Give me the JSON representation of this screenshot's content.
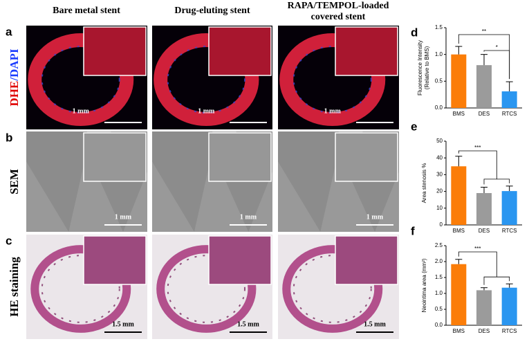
{
  "figure": {
    "columns": [
      [
        "Bare metal stent"
      ],
      [
        "Drug-eluting stent"
      ],
      [
        "RAPA/TEMPOL-loaded",
        "covered stent"
      ]
    ],
    "rows": [
      {
        "panel": "a",
        "label": [
          "DHE",
          "/DAPI"
        ],
        "scale_bar": "1 mm"
      },
      {
        "panel": "b",
        "label": [
          "SEM"
        ],
        "scale_bar": "1 mm"
      },
      {
        "panel": "c",
        "label": [
          "HE staining"
        ],
        "scale_bar": "1.5 mm"
      }
    ]
  },
  "chart_data": [
    {
      "type": "bar",
      "panel": "d",
      "ylabel": [
        "Fluorescence Intensity",
        "(Relative to BMS)"
      ],
      "categories": [
        "BMS",
        "DES",
        "RTCS"
      ],
      "values": [
        1.0,
        0.8,
        0.31
      ],
      "errors": [
        0.15,
        0.2,
        0.18
      ],
      "colors": [
        "#fb7d08",
        "#9b9b9b",
        "#2a96f0"
      ],
      "ylim": [
        0,
        1.5
      ],
      "yticks": [
        {
          "value": 0,
          "label": "0.0"
        },
        0.5,
        {
          "value": 1,
          "label": "1.0"
        },
        1.5
      ],
      "annotations": [
        "**",
        "*"
      ]
    },
    {
      "type": "bar",
      "panel": "e",
      "ylabel": [
        "Area stenosis %"
      ],
      "categories": [
        "BMS",
        "DES",
        "RTCS"
      ],
      "values": [
        35,
        19,
        20.2
      ],
      "errors": [
        6,
        3.5,
        3
      ],
      "colors": [
        "#fb7d08",
        "#9b9b9b",
        "#2a96f0"
      ],
      "ylim": [
        0,
        50
      ],
      "yticks": [
        0,
        10,
        20,
        30,
        40,
        50
      ],
      "annotations": [
        "***"
      ]
    },
    {
      "type": "bar",
      "panel": "f",
      "ylabel": [
        "Neointima area (mm²)"
      ],
      "categories": [
        "BMS",
        "DES",
        "RTCS"
      ],
      "values": [
        1.92,
        1.1,
        1.18
      ],
      "errors": [
        0.15,
        0.08,
        0.12
      ],
      "colors": [
        "#fb7d08",
        "#9b9b9b",
        "#2a96f0"
      ],
      "ylim": [
        0,
        2.5
      ],
      "yticks": [
        {
          "value": 0,
          "label": "0.0"
        },
        0.5,
        {
          "value": 1,
          "label": "1.0"
        },
        1.5,
        {
          "value": 2,
          "label": "2.0"
        },
        2.5
      ],
      "annotations": [
        "***"
      ]
    }
  ]
}
